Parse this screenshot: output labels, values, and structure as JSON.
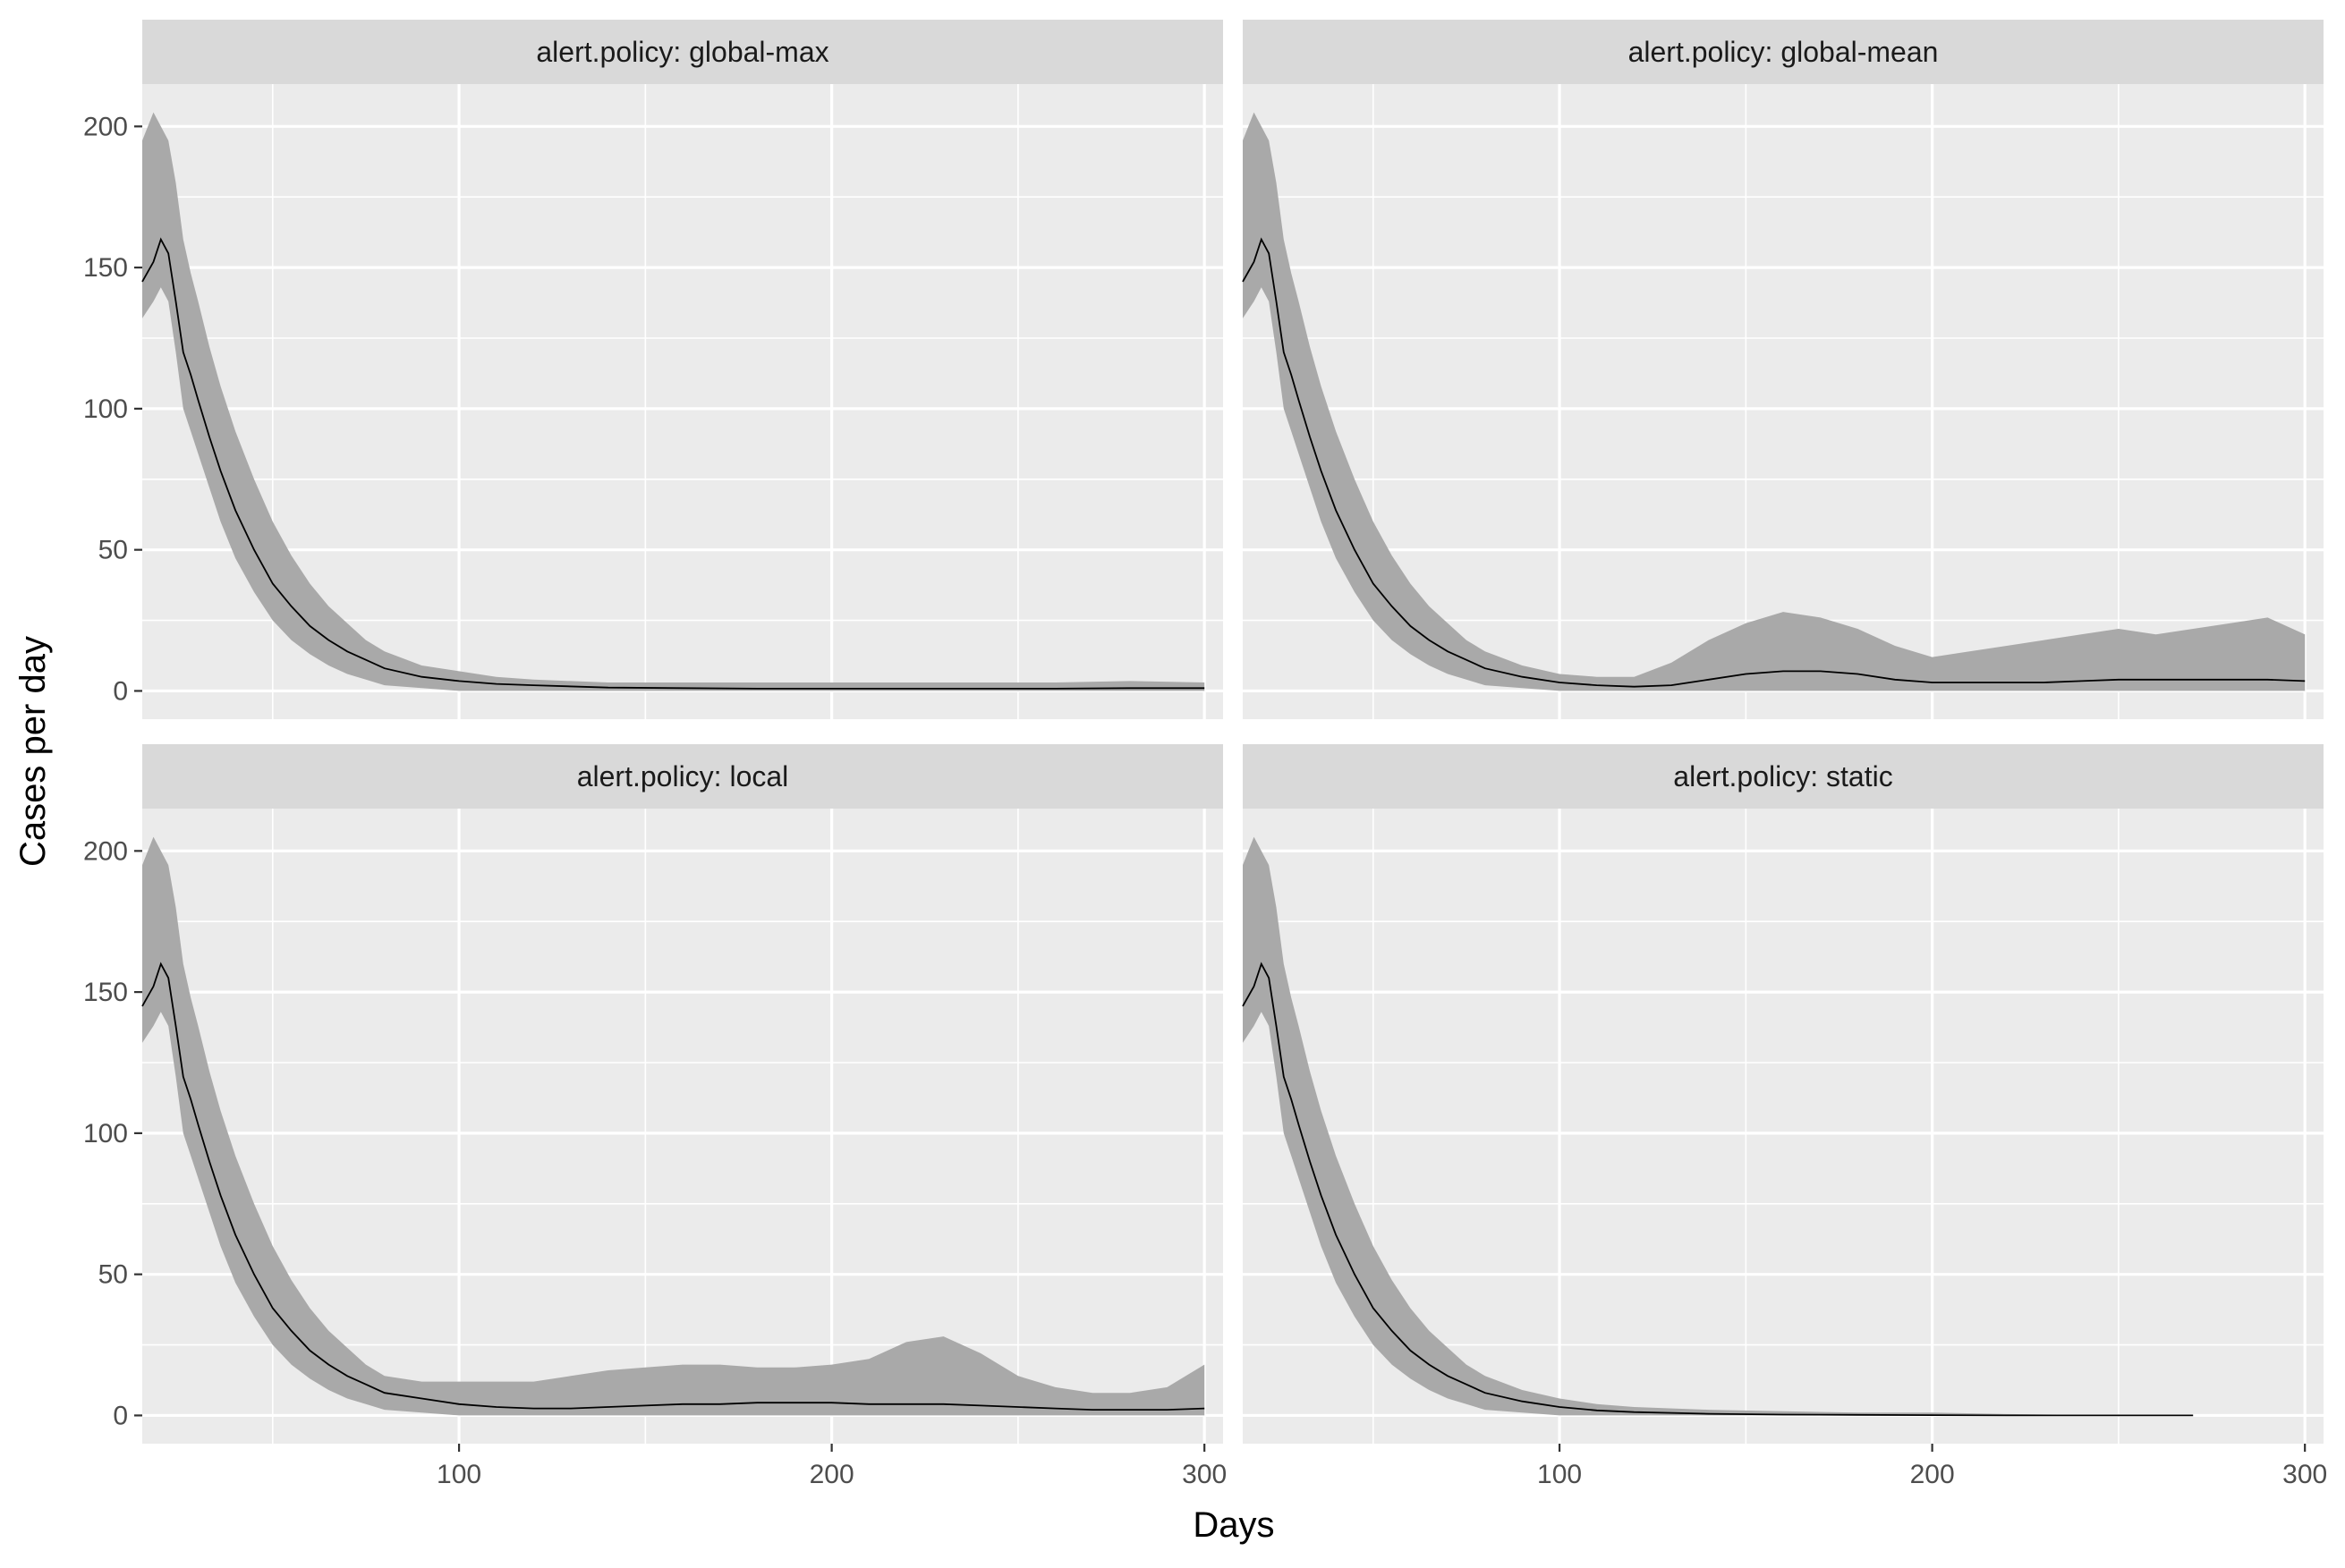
{
  "chart_data": {
    "type": "area",
    "facet_variable": "alert.policy",
    "xlabel": "Days",
    "ylabel": "Cases per day",
    "xlim": [
      15,
      305
    ],
    "ylim": [
      -10,
      215
    ],
    "x_ticks": [
      100,
      200,
      300
    ],
    "y_ticks": [
      0,
      50,
      100,
      150,
      200
    ],
    "grid": true,
    "colors": {
      "panel": "#ebebeb",
      "strip": "#d9d9d9",
      "band": "#a9a9a9",
      "line": "#000000"
    },
    "facets": [
      {
        "label": "alert.policy: global-max",
        "x": [
          15,
          18,
          20,
          22,
          24,
          26,
          28,
          30,
          33,
          36,
          40,
          45,
          50,
          55,
          60,
          65,
          70,
          75,
          80,
          90,
          100,
          110,
          120,
          140,
          160,
          180,
          200,
          220,
          240,
          260,
          280,
          300
        ],
        "mean": [
          145,
          152,
          160,
          155,
          138,
          120,
          112,
          103,
          90,
          78,
          64,
          50,
          38,
          30,
          23,
          18,
          14,
          11,
          8,
          5,
          3.5,
          2.5,
          2,
          1.2,
          1,
          0.8,
          0.8,
          0.8,
          0.8,
          0.8,
          1,
          1
        ],
        "lower": [
          132,
          138,
          143,
          138,
          120,
          100,
          92,
          84,
          72,
          60,
          47,
          35,
          25,
          18,
          13,
          9,
          6,
          4,
          2,
          1,
          0,
          0,
          0,
          0,
          0,
          0,
          0,
          0,
          0,
          0,
          0,
          0
        ],
        "upper": [
          195,
          205,
          200,
          195,
          180,
          160,
          148,
          138,
          122,
          108,
          92,
          75,
          60,
          48,
          38,
          30,
          24,
          18,
          14,
          9,
          7,
          5,
          4,
          3,
          3,
          3,
          3,
          3,
          3,
          3,
          3.5,
          3
        ]
      },
      {
        "label": "alert.policy: global-mean",
        "x": [
          15,
          18,
          20,
          22,
          24,
          26,
          28,
          30,
          33,
          36,
          40,
          45,
          50,
          55,
          60,
          65,
          70,
          75,
          80,
          90,
          100,
          110,
          120,
          130,
          140,
          150,
          160,
          170,
          180,
          190,
          200,
          210,
          220,
          230,
          240,
          250,
          260,
          270,
          280,
          290,
          300
        ],
        "mean": [
          145,
          152,
          160,
          155,
          138,
          120,
          112,
          103,
          90,
          78,
          64,
          50,
          38,
          30,
          23,
          18,
          14,
          11,
          8,
          5,
          3,
          2,
          1.5,
          2,
          4,
          6,
          7,
          7,
          6,
          4,
          3,
          3,
          3,
          3,
          3.5,
          4,
          4,
          4,
          4,
          4,
          3.5
        ],
        "lower": [
          132,
          138,
          143,
          138,
          120,
          100,
          92,
          84,
          72,
          60,
          47,
          35,
          25,
          18,
          13,
          9,
          6,
          4,
          2,
          1,
          0,
          0,
          0,
          0,
          0,
          0,
          0,
          0,
          0,
          0,
          0,
          0,
          0,
          0,
          0,
          0,
          0,
          0,
          0,
          0,
          0
        ],
        "upper": [
          195,
          205,
          200,
          195,
          180,
          160,
          148,
          138,
          122,
          108,
          92,
          75,
          60,
          48,
          38,
          30,
          24,
          18,
          14,
          9,
          6,
          5,
          5,
          10,
          18,
          24,
          28,
          26,
          22,
          16,
          12,
          14,
          16,
          18,
          20,
          22,
          20,
          22,
          24,
          26,
          20
        ]
      },
      {
        "label": "alert.policy: local",
        "x": [
          15,
          18,
          20,
          22,
          24,
          26,
          28,
          30,
          33,
          36,
          40,
          45,
          50,
          55,
          60,
          65,
          70,
          75,
          80,
          90,
          100,
          110,
          120,
          130,
          140,
          150,
          160,
          170,
          180,
          190,
          200,
          210,
          220,
          230,
          240,
          250,
          260,
          270,
          280,
          290,
          300
        ],
        "mean": [
          145,
          152,
          160,
          155,
          138,
          120,
          112,
          103,
          90,
          78,
          64,
          50,
          38,
          30,
          23,
          18,
          14,
          11,
          8,
          6,
          4,
          3,
          2.5,
          2.5,
          3,
          3.5,
          4,
          4,
          4.5,
          4.5,
          4.5,
          4,
          4,
          4,
          3.5,
          3,
          2.5,
          2,
          2,
          2,
          2.5
        ],
        "lower": [
          132,
          138,
          143,
          138,
          120,
          100,
          92,
          84,
          72,
          60,
          47,
          35,
          25,
          18,
          13,
          9,
          6,
          4,
          2,
          1,
          0,
          0,
          0,
          0,
          0,
          0,
          0,
          0,
          0,
          0,
          0,
          0,
          0,
          0,
          0,
          0,
          0,
          0,
          0,
          0,
          0
        ],
        "upper": [
          195,
          205,
          200,
          195,
          180,
          160,
          148,
          138,
          122,
          108,
          92,
          75,
          60,
          48,
          38,
          30,
          24,
          18,
          14,
          12,
          12,
          12,
          12,
          14,
          16,
          17,
          18,
          18,
          17,
          17,
          18,
          20,
          26,
          28,
          22,
          14,
          10,
          8,
          8,
          10,
          18
        ]
      },
      {
        "label": "alert.policy: static",
        "x": [
          15,
          18,
          20,
          22,
          24,
          26,
          28,
          30,
          33,
          36,
          40,
          45,
          50,
          55,
          60,
          65,
          70,
          75,
          80,
          90,
          100,
          110,
          120,
          140,
          160,
          180,
          200,
          220,
          240,
          255,
          270
        ],
        "mean": [
          145,
          152,
          160,
          155,
          138,
          120,
          112,
          103,
          90,
          78,
          64,
          50,
          38,
          30,
          23,
          18,
          14,
          11,
          8,
          5,
          3,
          1.8,
          1.2,
          0.6,
          0.3,
          0.2,
          0.1,
          0,
          0,
          0,
          0
        ],
        "lower": [
          132,
          138,
          143,
          138,
          120,
          100,
          92,
          84,
          72,
          60,
          47,
          35,
          25,
          18,
          13,
          9,
          6,
          4,
          2,
          1,
          0,
          0,
          0,
          0,
          0,
          0,
          0,
          0,
          0,
          0,
          0
        ],
        "upper": [
          195,
          205,
          200,
          195,
          180,
          160,
          148,
          138,
          122,
          108,
          92,
          75,
          60,
          48,
          38,
          30,
          24,
          18,
          14,
          9,
          6,
          4,
          3,
          2,
          1.5,
          1,
          1,
          0.5,
          0.2,
          0,
          0
        ]
      }
    ]
  }
}
